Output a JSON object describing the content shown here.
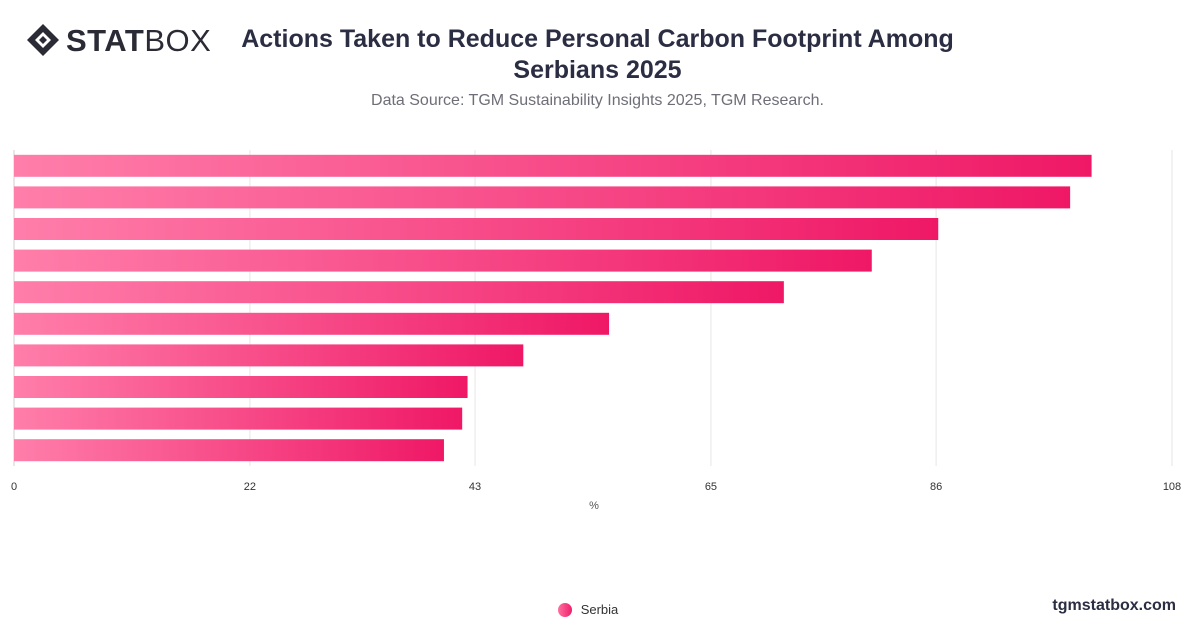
{
  "brand": {
    "logo_bold": "STAT",
    "logo_light": "BOX",
    "site": "tgmstatbox.com"
  },
  "header": {
    "title": "Actions Taken to Reduce Personal Carbon Footprint Among Serbians 2025",
    "subtitle": "Data Source: TGM Sustainability Insights 2025, TGM Research."
  },
  "legend": {
    "label": "Serbia"
  },
  "colors": {
    "bar_start": "#ff7eaa",
    "bar_end": "#ef1866",
    "grid": "#e6e6e6",
    "axis_text": "#333333"
  },
  "chart_data": {
    "type": "bar",
    "orientation": "horizontal",
    "categories": [
      "",
      "",
      "",
      "",
      "",
      "",
      "",
      "",
      "",
      ""
    ],
    "series": [
      {
        "name": "Serbia",
        "values": [
          100.5,
          98.5,
          86.2,
          80.0,
          71.8,
          55.5,
          47.5,
          42.3,
          41.8,
          40.1
        ]
      }
    ],
    "xlabel": "%",
    "xlim": [
      0,
      108
    ],
    "ticks": [
      0,
      22,
      43,
      65,
      86,
      108
    ],
    "grid": true,
    "legend_position": "bottom"
  }
}
